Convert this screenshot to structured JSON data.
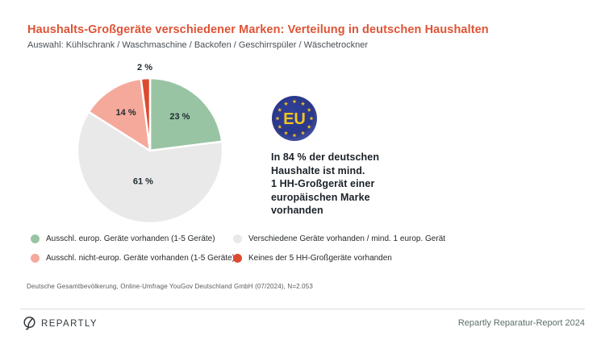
{
  "header": {
    "title": "Haushalts-Großgeräte verschiedener Marken: Verteilung in deutschen Haushalten",
    "subtitle": "Auswahl: Kühlschrank / Waschmaschine / Backofen / Geschirrspüler / Wäschetrockner"
  },
  "chart_data": {
    "type": "pie",
    "title": "Haushalts-Großgeräte verschiedener Marken: Verteilung in deutschen Haushalten",
    "direction": "clockwise",
    "start_angle_deg": -90,
    "slices": [
      {
        "label": "Ausschl. europ. Geräte vorhanden (1-5 Geräte)",
        "value": 23,
        "display": "23 %",
        "color": "#99C4A3"
      },
      {
        "label": "Verschiedene Geräte vorhanden / mind. 1 europ. Gerät",
        "value": 61,
        "display": "61 %",
        "color": "#E9E9E9"
      },
      {
        "label": "Ausschl. nicht-europ. Geräte vorhanden (1-5 Geräte)",
        "value": 14,
        "display": "14 %",
        "color": "#F5A99A"
      },
      {
        "label": "Keines der 5 HH-Großgeräte vorhanden",
        "value": 2,
        "display": "2 %",
        "color": "#DD4A2F"
      }
    ]
  },
  "legend": {
    "items": [
      {
        "label": "Ausschl. europ. Geräte vorhanden (1-5 Geräte)",
        "color": "#99C4A3"
      },
      {
        "label": "Verschiedene Geräte vorhanden / mind. 1 europ. Gerät",
        "color": "#E9E9E9"
      },
      {
        "label": "Ausschl. nicht-europ. Geräte vorhanden (1-5 Geräte)",
        "color": "#F5A99A"
      },
      {
        "label": "Keines der 5 HH-Großgeräte vorhanden",
        "color": "#DD4A2F"
      }
    ]
  },
  "eu_callout": {
    "badge_text": "EU",
    "badge_color": "#2C3B8D",
    "star_color": "#F2C51D",
    "text": "In 84 % der deutschen\nHaushalte ist mind.\n1 HH-Großgerät einer\neuropäischen Marke\nvorhanden"
  },
  "source": "Deutsche Gesamtbevölkerung, Online-Umfrage YouGov Deutschland GmbH (07/2024), N=2.053",
  "footer": {
    "brand": "REPARTLY",
    "report": "Repartly Reparatur-Report 2024"
  }
}
